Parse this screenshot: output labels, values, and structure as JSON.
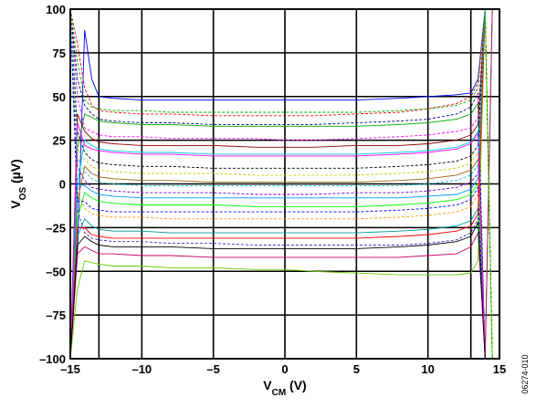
{
  "chart_data": {
    "type": "line",
    "title": "",
    "xlabel": {
      "main": "V",
      "sub": "CM",
      "unit": " (V)"
    },
    "ylabel": {
      "main": "V",
      "sub": "OS",
      "unit": " (µV)"
    },
    "xlim": [
      -15,
      15
    ],
    "ylim": [
      -100,
      100
    ],
    "xticks": [
      -15,
      -13,
      -10,
      -5,
      0,
      5,
      10,
      13,
      15
    ],
    "xtick_labels": [
      "–15",
      "",
      "–10",
      "–5",
      "0",
      "5",
      "10",
      "",
      "15"
    ],
    "yticks": [
      -100,
      -75,
      -50,
      -25,
      0,
      25,
      50,
      75,
      100
    ],
    "ytick_labels": [
      "–100",
      "–75",
      "–50",
      "–25",
      "0",
      "25",
      "50",
      "75",
      "100"
    ],
    "grid": true,
    "legend": "none",
    "figure_id": "06274-010",
    "series_note_count": 90,
    "colors": [
      "#0000ff",
      "#ff0000",
      "#00aa00",
      "#ff00ff",
      "#00cccc",
      "#000000",
      "#996600",
      "#6600cc",
      "#00ff00",
      "#ff9900",
      "#009999",
      "#3333cc",
      "#cc0066",
      "#66cc00",
      "#000080",
      "#8b0000",
      "#cccc00",
      "#0099ff"
    ],
    "series_shape_x": [
      -15,
      -14.5,
      -14,
      -13.5,
      -13,
      -12,
      -10,
      -8,
      -5,
      -2,
      0,
      2,
      5,
      8,
      10,
      12,
      13,
      13.5,
      14,
      14.5,
      15
    ],
    "series": [
      {
        "name": "",
        "style": "solid",
        "values": [
          -100,
          -40,
          88,
          60,
          50,
          49,
          48,
          48,
          48,
          48,
          48,
          48,
          48,
          49,
          50,
          51,
          52,
          60,
          100,
          100,
          100
        ]
      },
      {
        "name": "",
        "style": "dashed",
        "values": [
          100,
          80,
          55,
          45,
          42,
          41,
          40,
          40,
          39,
          39,
          39,
          39,
          40,
          41,
          43,
          46,
          50,
          58,
          100,
          -100,
          -100
        ]
      },
      {
        "name": "",
        "style": "solid",
        "values": [
          -100,
          20,
          40,
          38,
          36,
          35,
          34,
          34,
          33,
          33,
          33,
          33,
          33,
          34,
          35,
          37,
          40,
          46,
          -100,
          -100,
          -100
        ]
      },
      {
        "name": "",
        "style": "dashed",
        "values": [
          100,
          50,
          32,
          30,
          28,
          27,
          27,
          26,
          26,
          26,
          25,
          25,
          26,
          27,
          28,
          30,
          32,
          38,
          100,
          100,
          100
        ]
      },
      {
        "name": "",
        "style": "solid",
        "values": [
          -100,
          0,
          25,
          22,
          20,
          19,
          18,
          18,
          17,
          17,
          17,
          17,
          17,
          18,
          19,
          21,
          24,
          30,
          -100,
          100,
          100
        ]
      },
      {
        "name": "",
        "style": "dashed",
        "values": [
          100,
          30,
          18,
          14,
          12,
          11,
          10,
          10,
          9,
          9,
          9,
          9,
          9,
          10,
          11,
          13,
          16,
          22,
          100,
          -100,
          -100
        ]
      },
      {
        "name": "",
        "style": "solid",
        "values": [
          -100,
          -10,
          10,
          6,
          4,
          3,
          2,
          2,
          1,
          1,
          1,
          1,
          1,
          2,
          3,
          5,
          8,
          14,
          -100,
          -100,
          -100
        ]
      },
      {
        "name": "",
        "style": "dashed",
        "values": [
          100,
          10,
          2,
          -2,
          -3,
          -4,
          -5,
          -5,
          -5,
          -6,
          -6,
          -6,
          -5,
          -5,
          -4,
          -2,
          1,
          6,
          100,
          100,
          100
        ]
      },
      {
        "name": "",
        "style": "solid",
        "values": [
          -100,
          -20,
          -5,
          -8,
          -10,
          -11,
          -12,
          -12,
          -12,
          -13,
          -13,
          -13,
          -13,
          -12,
          -11,
          -9,
          -6,
          0,
          -100,
          100,
          100
        ]
      },
      {
        "name": "",
        "style": "dashed",
        "values": [
          100,
          -5,
          -14,
          -17,
          -18,
          -19,
          -19,
          -20,
          -20,
          -20,
          -20,
          -20,
          -20,
          -19,
          -18,
          -16,
          -13,
          -6,
          100,
          -100,
          -100
        ]
      },
      {
        "name": "",
        "style": "solid",
        "values": [
          -100,
          -30,
          -20,
          -24,
          -26,
          -27,
          -27,
          -28,
          -28,
          -28,
          -28,
          -28,
          -28,
          -27,
          -26,
          -24,
          -21,
          -14,
          -100,
          -100,
          -100
        ]
      },
      {
        "name": "",
        "style": "dashed",
        "values": [
          100,
          -15,
          -28,
          -31,
          -32,
          -33,
          -33,
          -34,
          -34,
          -35,
          -35,
          -35,
          -35,
          -35,
          -34,
          -32,
          -28,
          -20,
          100,
          100,
          100
        ]
      },
      {
        "name": "",
        "style": "solid",
        "values": [
          -100,
          -40,
          -36,
          -38,
          -40,
          -40,
          -41,
          -41,
          -42,
          -42,
          -42,
          -42,
          -42,
          -42,
          -41,
          -40,
          -36,
          -28,
          -100,
          100,
          100
        ]
      },
      {
        "name": "",
        "style": "solid",
        "values": [
          -100,
          -60,
          -44,
          -45,
          -46,
          -47,
          -47,
          -48,
          -48,
          -49,
          -49,
          -50,
          -51,
          -52,
          -52,
          -52,
          -51,
          -44,
          100,
          -100,
          -100
        ]
      },
      {
        "name": "",
        "style": "dashed",
        "values": [
          100,
          60,
          45,
          40,
          37,
          36,
          35,
          35,
          34,
          34,
          34,
          34,
          35,
          36,
          37,
          40,
          44,
          52,
          -100,
          -100,
          -100
        ]
      },
      {
        "name": "",
        "style": "solid",
        "values": [
          -100,
          40,
          30,
          26,
          24,
          23,
          22,
          22,
          22,
          21,
          21,
          21,
          22,
          22,
          23,
          25,
          28,
          34,
          100,
          100,
          100
        ]
      },
      {
        "name": "",
        "style": "dashed",
        "values": [
          100,
          20,
          14,
          10,
          8,
          7,
          6,
          6,
          6,
          5,
          5,
          5,
          5,
          6,
          7,
          9,
          12,
          18,
          -100,
          -100,
          -100
        ]
      },
      {
        "name": "",
        "style": "solid",
        "values": [
          -100,
          0,
          -1,
          -4,
          -6,
          -7,
          -8,
          -8,
          -8,
          -8,
          -8,
          -8,
          -8,
          -8,
          -7,
          -6,
          -3,
          3,
          100,
          100,
          100
        ]
      },
      {
        "name": "",
        "style": "dashed",
        "values": [
          100,
          -10,
          -10,
          -14,
          -15,
          -16,
          -16,
          -16,
          -16,
          -16,
          -16,
          -16,
          -16,
          -15,
          -14,
          -12,
          -9,
          -2,
          -100,
          -100,
          -100
        ]
      },
      {
        "name": "",
        "style": "solid",
        "values": [
          -100,
          -25,
          -25,
          -29,
          -30,
          -31,
          -31,
          -31,
          -31,
          -31,
          -31,
          -31,
          -31,
          -30,
          -29,
          -27,
          -24,
          -17,
          100,
          100,
          100
        ]
      },
      {
        "name": "",
        "style": "dashed",
        "values": [
          100,
          70,
          48,
          44,
          43,
          42,
          42,
          41,
          41,
          41,
          41,
          41,
          41,
          42,
          43,
          45,
          48,
          55,
          100,
          -100,
          -100
        ]
      },
      {
        "name": "",
        "style": "solid",
        "values": [
          -100,
          35,
          22,
          20,
          19,
          18,
          17,
          17,
          16,
          16,
          16,
          16,
          16,
          17,
          18,
          20,
          23,
          29,
          -100,
          -100,
          -100
        ]
      },
      {
        "name": "",
        "style": "dashed",
        "values": [
          100,
          15,
          7,
          3,
          1,
          0,
          -1,
          -1,
          -1,
          -1,
          -1,
          -1,
          -1,
          -1,
          0,
          2,
          5,
          11,
          100,
          100,
          100
        ]
      },
      {
        "name": "",
        "style": "solid",
        "values": [
          -100,
          -35,
          -30,
          -33,
          -35,
          -36,
          -36,
          -36,
          -37,
          -37,
          -37,
          -37,
          -37,
          -36,
          -35,
          -33,
          -30,
          -22,
          -100,
          -100,
          -100
        ]
      }
    ]
  }
}
